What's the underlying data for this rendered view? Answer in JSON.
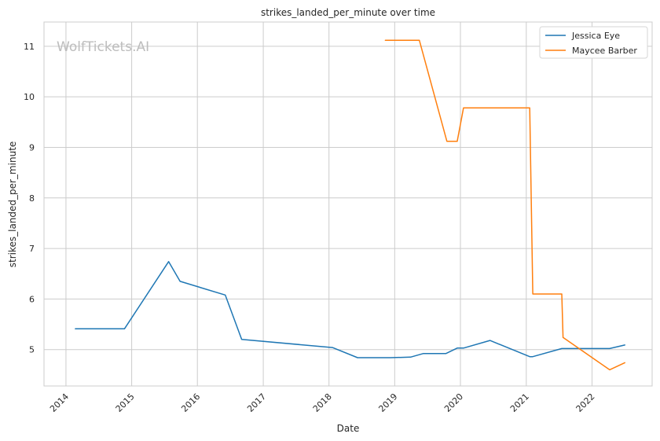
{
  "chart_data": {
    "type": "line",
    "title": "strikes_landed_per_minute over time",
    "xlabel": "Date",
    "ylabel": "strikes_landed_per_minute",
    "watermark": "WolfTickets.AI",
    "grid": true,
    "legend_position": "top-right",
    "x_ticks": [
      "2014",
      "2015",
      "2016",
      "2017",
      "2018",
      "2019",
      "2020",
      "2021",
      "2022"
    ],
    "y_ticks": [
      5,
      6,
      7,
      8,
      9,
      10,
      11
    ],
    "xlim": [
      "2013-09-01",
      "2022-12-01"
    ],
    "ylim": [
      4.28,
      11.48
    ],
    "series": [
      {
        "name": "Jessica Eye",
        "color": "#1f77b4",
        "points": [
          [
            "2014-02-22",
            5.41
          ],
          [
            "2014-11-22",
            5.41
          ],
          [
            "2015-07-25",
            6.74
          ],
          [
            "2015-09-27",
            6.35
          ],
          [
            "2016-06-04",
            6.08
          ],
          [
            "2016-09-03",
            5.2
          ],
          [
            "2018-01-20",
            5.04
          ],
          [
            "2018-06-09",
            4.84
          ],
          [
            "2018-12-08",
            4.84
          ],
          [
            "2019-03-30",
            4.85
          ],
          [
            "2019-06-08",
            4.92
          ],
          [
            "2019-10-12",
            4.92
          ],
          [
            "2019-12-14",
            5.03
          ],
          [
            "2020-01-18",
            5.03
          ],
          [
            "2020-06-13",
            5.18
          ],
          [
            "2021-01-20",
            4.86
          ],
          [
            "2021-02-06",
            4.86
          ],
          [
            "2021-07-17",
            5.02
          ],
          [
            "2022-04-09",
            5.02
          ],
          [
            "2022-07-02",
            5.09
          ]
        ]
      },
      {
        "name": "Maycee Barber",
        "color": "#ff7f0e",
        "points": [
          [
            "2018-11-10",
            11.12
          ],
          [
            "2019-05-18",
            11.12
          ],
          [
            "2019-10-18",
            9.12
          ],
          [
            "2019-12-14",
            9.12
          ],
          [
            "2020-01-18",
            9.78
          ],
          [
            "2021-01-20",
            9.78
          ],
          [
            "2021-02-06",
            6.1
          ],
          [
            "2021-07-17",
            6.1
          ],
          [
            "2021-07-24",
            5.24
          ],
          [
            "2022-04-09",
            4.6
          ],
          [
            "2022-07-02",
            4.74
          ]
        ]
      }
    ]
  }
}
